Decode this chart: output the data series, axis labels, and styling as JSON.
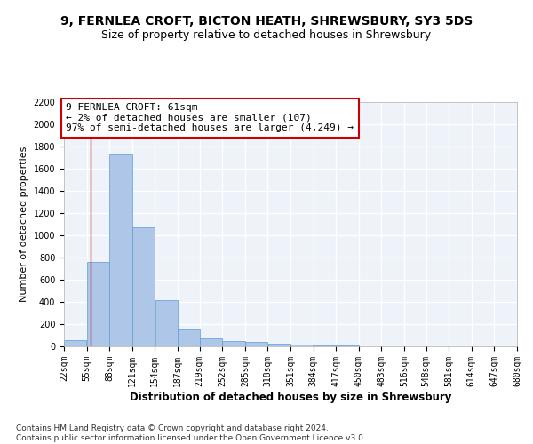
{
  "title1": "9, FERNLEA CROFT, BICTON HEATH, SHREWSBURY, SY3 5DS",
  "title2": "Size of property relative to detached houses in Shrewsbury",
  "xlabel": "Distribution of detached houses by size in Shrewsbury",
  "ylabel": "Number of detached properties",
  "bar_color": "#aec6e8",
  "bar_edge_color": "#5b9bd5",
  "annotation_box_color": "#cc0000",
  "property_line_color": "#cc0000",
  "annotation_text": "9 FERNLEA CROFT: 61sqm\n← 2% of detached houses are smaller (107)\n97% of semi-detached houses are larger (4,249) →",
  "property_size": 61,
  "bin_edges": [
    22,
    55,
    88,
    121,
    154,
    187,
    219,
    252,
    285,
    318,
    351,
    384,
    417,
    450,
    483,
    516,
    548,
    581,
    614,
    647,
    680
  ],
  "bar_heights": [
    55,
    760,
    1740,
    1070,
    420,
    155,
    75,
    45,
    40,
    25,
    20,
    10,
    8,
    0,
    0,
    0,
    0,
    0,
    0,
    0
  ],
  "ylim": [
    0,
    2200
  ],
  "yticks": [
    0,
    200,
    400,
    600,
    800,
    1000,
    1200,
    1400,
    1600,
    1800,
    2000,
    2200
  ],
  "footnote": "Contains HM Land Registry data © Crown copyright and database right 2024.\nContains public sector information licensed under the Open Government Licence v3.0.",
  "background_color": "#eef3fa",
  "grid_color": "#ffffff",
  "title1_fontsize": 10,
  "title2_fontsize": 9,
  "annotation_fontsize": 8,
  "tick_label_fontsize": 7,
  "ylabel_fontsize": 8,
  "xlabel_fontsize": 8.5,
  "footnote_fontsize": 6.5
}
